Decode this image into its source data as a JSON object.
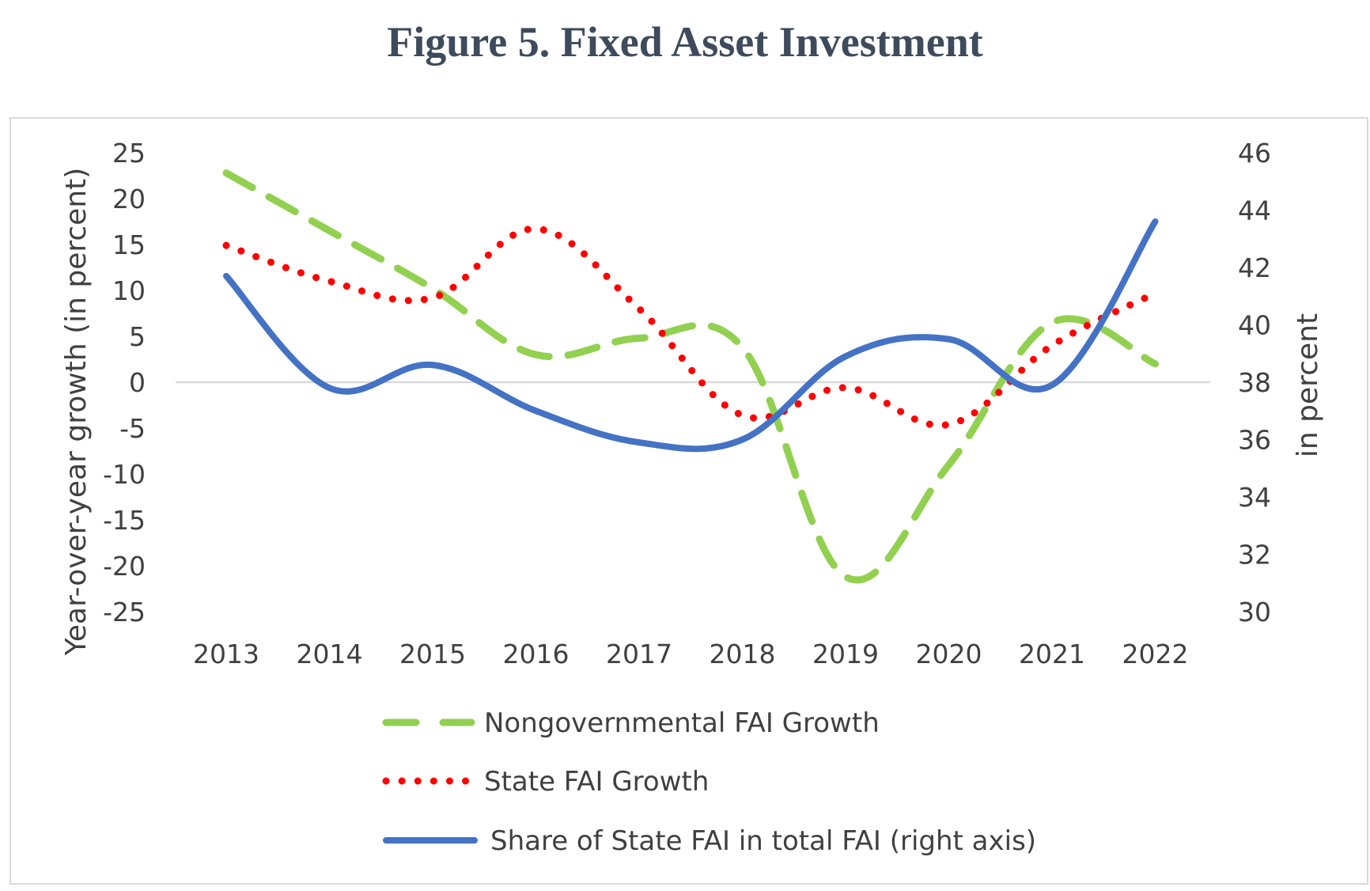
{
  "title": "Figure 5. Fixed Asset Investment",
  "chart_data": {
    "type": "line",
    "x": [
      "2013",
      "2014",
      "2015",
      "2016",
      "2017",
      "2018",
      "2019",
      "2020",
      "2021",
      "2022"
    ],
    "ylabel_left": "Year-over-year growth (in percent)",
    "ylabel_right": "in percent",
    "ylim_left": [
      -25,
      25
    ],
    "yticks_left": [
      25,
      20,
      15,
      10,
      5,
      0,
      -5,
      -10,
      -15,
      -20,
      -25
    ],
    "ylim_right": [
      30,
      46
    ],
    "yticks_right": [
      46,
      44,
      42,
      40,
      38,
      36,
      34,
      32,
      30
    ],
    "legend_position": "bottom",
    "series": [
      {
        "name": "Nongovernmental FAI Growth",
        "axis": "left",
        "style": "dashed",
        "color": "#92d050",
        "values": [
          22.8,
          16.5,
          10.2,
          3.0,
          4.8,
          3.8,
          -21.2,
          -9.0,
          6.5,
          2.0
        ]
      },
      {
        "name": "State FAI Growth",
        "axis": "left",
        "style": "dotted",
        "color": "#ff0000",
        "values": [
          14.9,
          11.0,
          9.2,
          16.7,
          8.0,
          -3.6,
          -0.6,
          -4.6,
          4.0,
          9.7
        ]
      },
      {
        "name": "Share of State FAI in total FAI (right axis)",
        "axis": "right",
        "style": "solid",
        "color": "#4472c4",
        "values": [
          41.7,
          37.8,
          38.6,
          37.0,
          35.9,
          36.0,
          38.9,
          39.5,
          37.9,
          43.6
        ]
      }
    ]
  }
}
